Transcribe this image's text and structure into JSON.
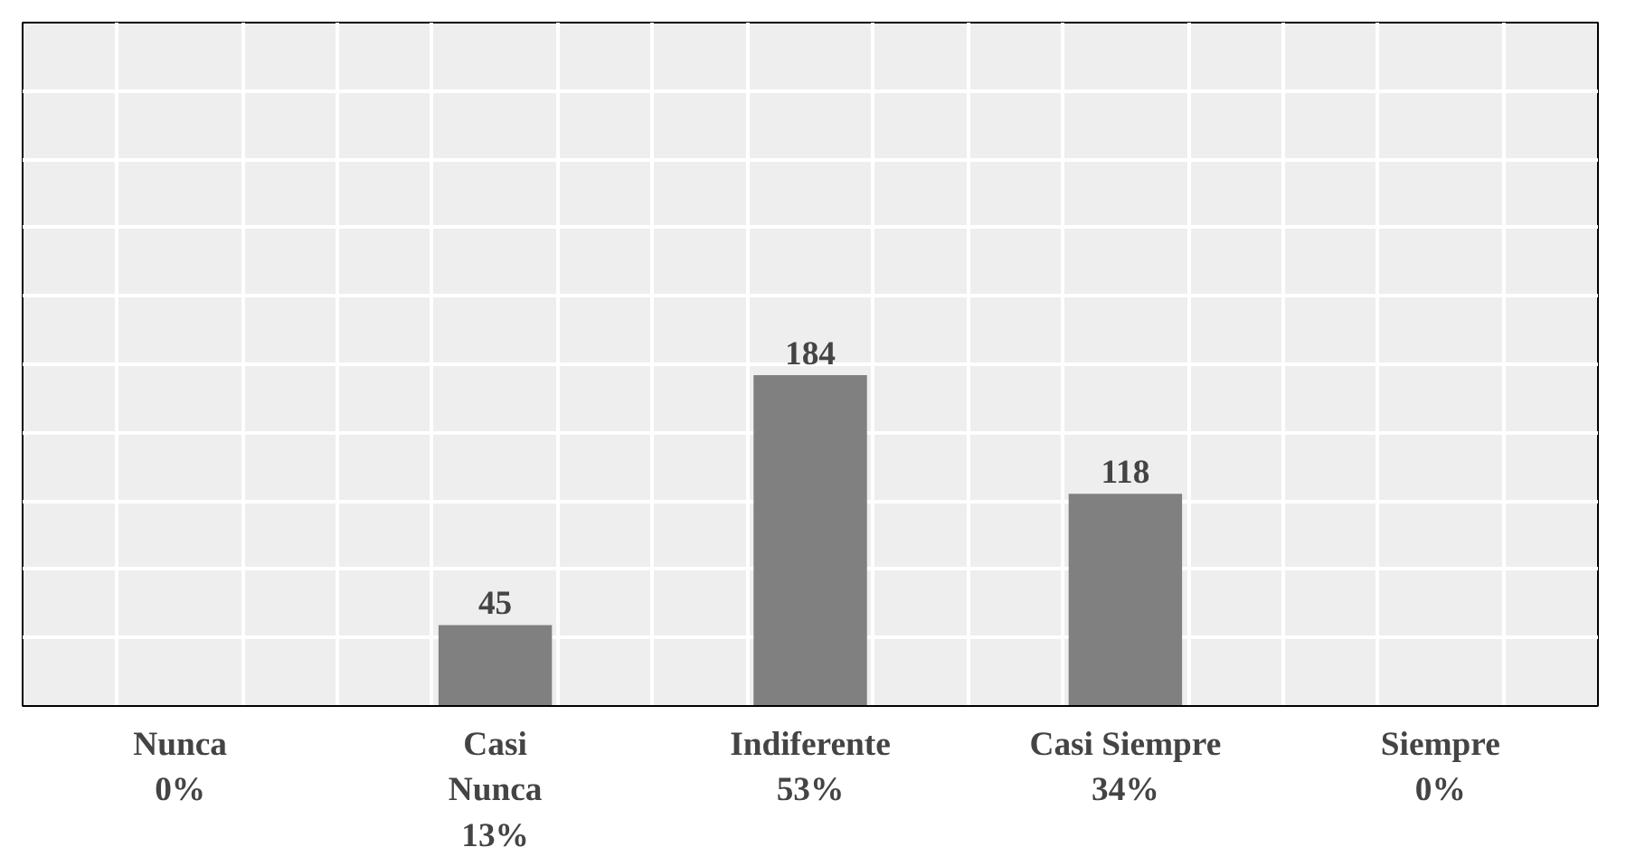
{
  "chart_data": {
    "type": "bar",
    "categories": [
      "Nunca\n0%",
      "Casi\nNunca\n13%",
      "Indiferente\n53%",
      "Casi Siempre\n34%",
      "Siempre\n0%"
    ],
    "values": [
      0,
      45,
      184,
      118,
      0
    ],
    "value_labels": [
      null,
      "45",
      "184",
      "118",
      null
    ],
    "color": "#808080",
    "ylim": [
      0,
      380
    ],
    "yticks": [
      {
        "value": 0,
        "label": null
      },
      {
        "value": 38,
        "label": null
      },
      {
        "value": 76,
        "label": null
      },
      {
        "value": 114,
        "label": null
      },
      {
        "value": 152,
        "label": null
      },
      {
        "value": 190,
        "label": null
      },
      {
        "value": 228,
        "label": null
      },
      {
        "value": 266,
        "label": null
      },
      {
        "value": 304,
        "label": null
      },
      {
        "value": 342,
        "label": null
      },
      {
        "value": 380,
        "label": null
      }
    ],
    "tick_labels": "x",
    "grid": true
  }
}
